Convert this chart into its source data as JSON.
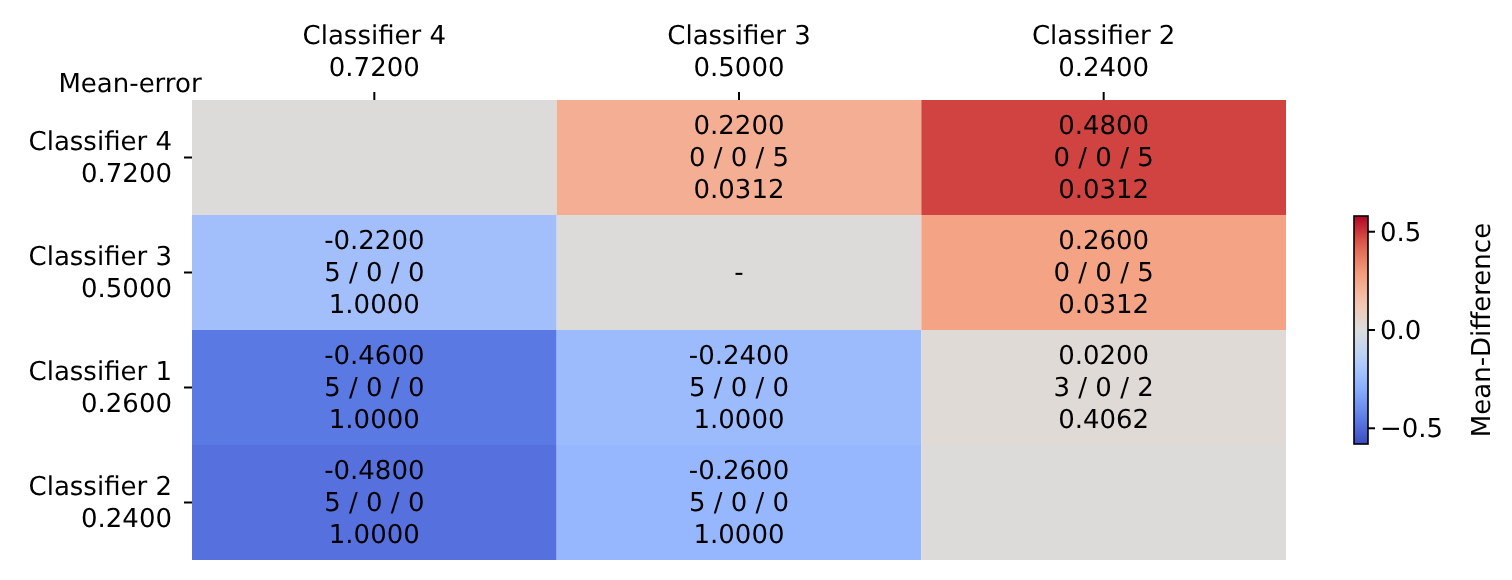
{
  "chart_data": {
    "type": "heatmap",
    "ylabel": "Mean-error",
    "clabel": "Mean-Difference",
    "categories": [
      "Classifier 4\n0.7200",
      "Classifier 3\n0.5000",
      "Classifier 2\n0.2400"
    ],
    "y_categories": [
      "Classifier 4\n0.7200",
      "Classifier 3\n0.5000",
      "Classifier 1\n0.2600",
      "Classifier 2\n0.2400"
    ],
    "cells": [
      [
        null,
        0.22,
        0.48
      ],
      [
        -0.22,
        null,
        0.26
      ],
      [
        -0.46,
        -0.24,
        0.02
      ],
      [
        -0.48,
        -0.26,
        null
      ]
    ],
    "cell_labels": [
      [
        null,
        "0.2200\n0 / 0 / 5\n0.0312",
        "0.4800\n0 / 0 / 5\n0.0312"
      ],
      [
        "-0.2200\n5 / 0 / 0\n1.0000",
        "-",
        "0.2600\n0 / 0 / 5\n0.0312"
      ],
      [
        "-0.4600\n5 / 0 / 0\n1.0000",
        "-0.2400\n5 / 0 / 0\n1.0000",
        "0.0200\n3 / 0 / 2\n0.4062"
      ],
      [
        "-0.4800\n5 / 0 / 0\n1.0000",
        "-0.2600\n5 / 0 / 0\n1.0000",
        null
      ]
    ],
    "clim": [
      -0.58,
      0.58
    ],
    "cticks": [
      {
        "value": -0.5,
        "label": "−0.5"
      },
      {
        "value": 0,
        "label": "0.0"
      },
      0.5
    ]
  }
}
